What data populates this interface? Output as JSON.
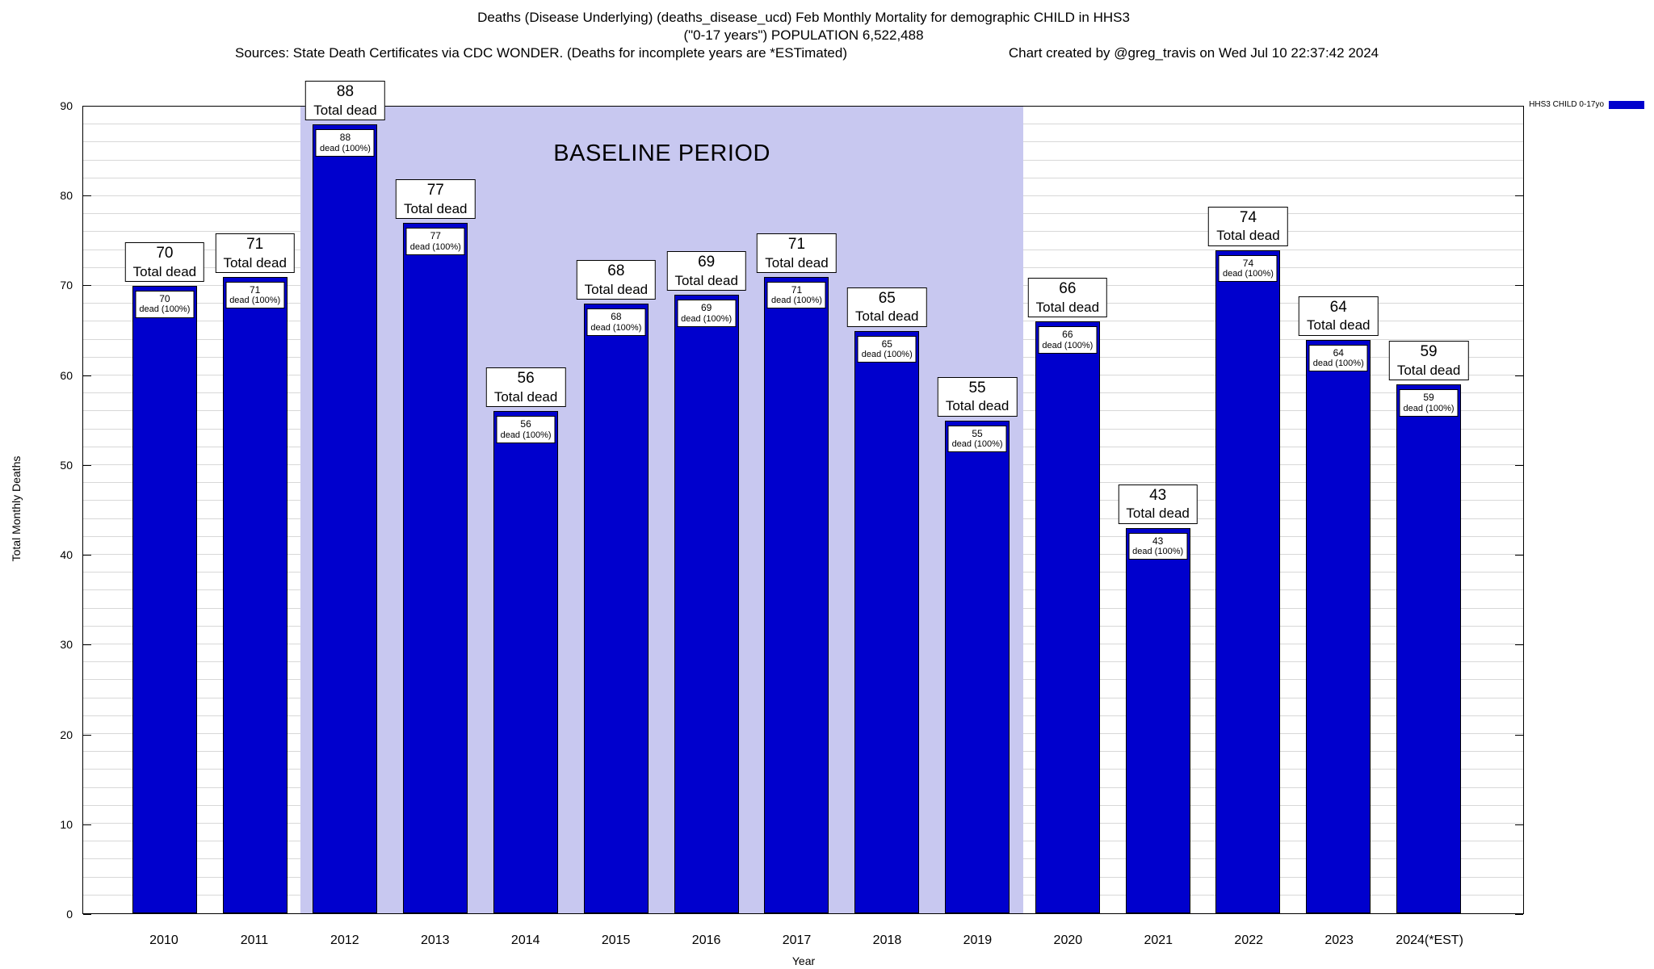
{
  "titles": {
    "line1": "Deaths (Disease Underlying) (deaths_disease_ucd) Feb Monthly Mortality for demographic CHILD in HHS3",
    "line2": "(\"0-17 years\") POPULATION 6,522,488",
    "sources": "Sources: State Death Certificates via CDC WONDER. (Deaths for incomplete years are *ESTimated)",
    "credit": "Chart created by @greg_travis on Wed Jul 10 22:37:42 2024"
  },
  "axes": {
    "y_label": "Total Monthly Deaths",
    "x_label": "Year",
    "y_ticks": [
      0,
      10,
      20,
      30,
      40,
      50,
      60,
      70,
      80,
      90
    ],
    "y_minor_step": 2
  },
  "legend": {
    "label": "HHS3 CHILD 0-17yo",
    "swatch_color": "#0000cd"
  },
  "chart_data": {
    "type": "bar",
    "title": "Deaths (Disease Underlying) (deaths_disease_ucd) Feb Monthly Mortality for demographic CHILD in HHS3",
    "subtitle": "(\"0-17 years\") POPULATION 6,522,488",
    "categories": [
      "2010",
      "2011",
      "2012",
      "2013",
      "2014",
      "2015",
      "2016",
      "2017",
      "2018",
      "2019",
      "2020",
      "2021",
      "2022",
      "2023",
      "2024(*EST)"
    ],
    "values": [
      70,
      71,
      88,
      77,
      56,
      68,
      69,
      71,
      65,
      55,
      66,
      43,
      74,
      64,
      59
    ],
    "xlabel": "Year",
    "ylabel": "Total Monthly Deaths",
    "ylim": [
      0,
      90
    ],
    "grid": true,
    "legend_position": "top-right-outside",
    "bar_color": "#0000cd",
    "baseline_period": {
      "label": "BASELINE PERIOD",
      "start_category": "2012",
      "end_category": "2019",
      "fill_color": "#c8c8f0"
    },
    "annotations": {
      "above_bar_suffix": "Total dead",
      "inside_bar_suffix": "dead (100%)"
    }
  }
}
